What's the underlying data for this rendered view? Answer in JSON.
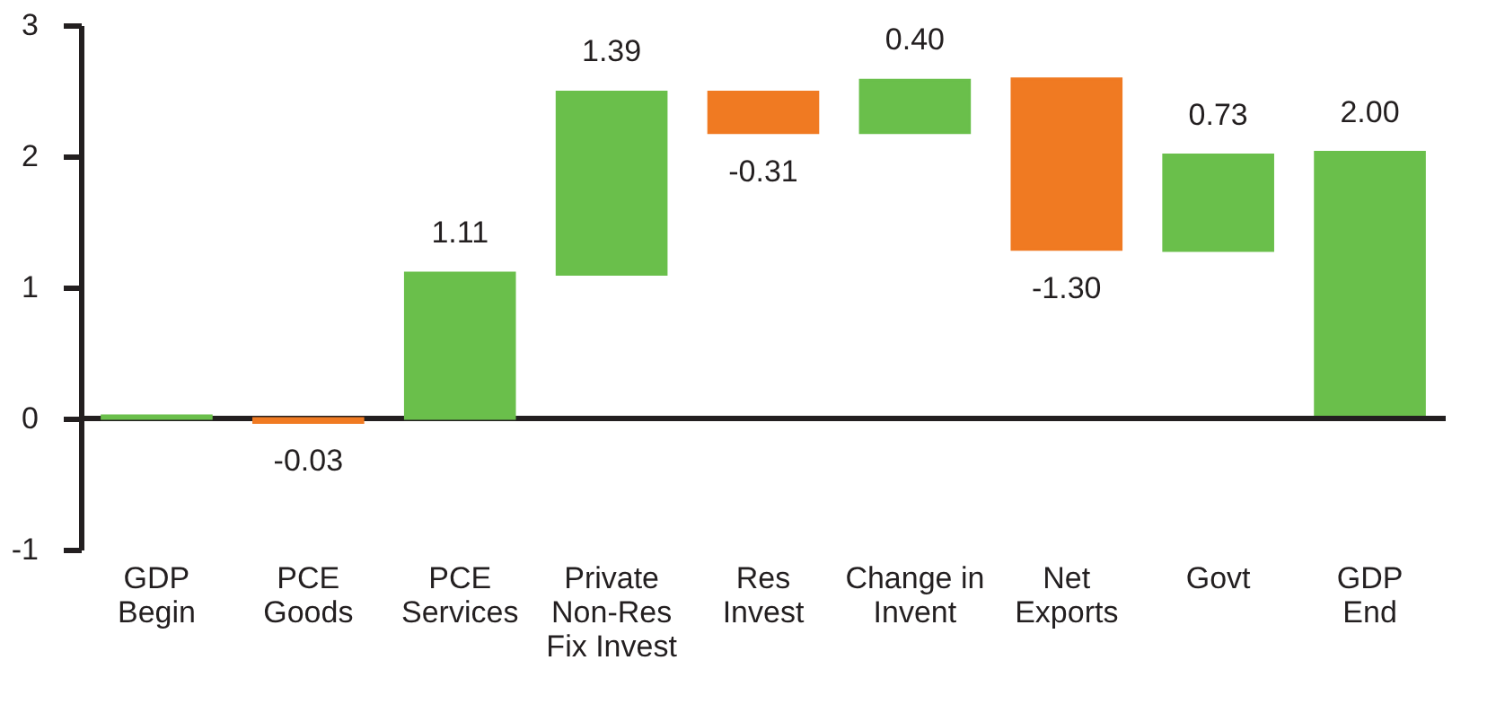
{
  "chart_data": {
    "type": "bar",
    "categories": [
      "GDP\nBegin",
      "PCE\nGoods",
      "PCE\nServices",
      "Private\nNon-Res\nFix Invest",
      "Res\nInvest",
      "Change in\nInvent",
      "Net\nExports",
      "Govt",
      "GDP\nEnd"
    ],
    "base": [
      0,
      0,
      0,
      1.1,
      2.49,
      2.18,
      2.59,
      1.28,
      0.03
    ],
    "values": [
      0.02,
      -0.03,
      1.11,
      1.39,
      -0.31,
      0.4,
      -1.3,
      0.73,
      2.0
    ],
    "colors": [
      "#6abf4b",
      "#f07a22",
      "#6abf4b",
      "#6abf4b",
      "#f07a22",
      "#6abf4b",
      "#f07a22",
      "#6abf4b",
      "#6abf4b"
    ],
    "value_labels": [
      null,
      "-0.03",
      "1.11",
      "1.39",
      "-0.31",
      "0.40",
      "-1.30",
      "0.73",
      "2.00"
    ],
    "ylim": [
      -1,
      3
    ],
    "yticks": [
      -1,
      0,
      1,
      2,
      3
    ],
    "ref_lines": [
      {
        "axis": "y",
        "value": 0,
        "color": "#231f20"
      }
    ],
    "grid": false
  }
}
